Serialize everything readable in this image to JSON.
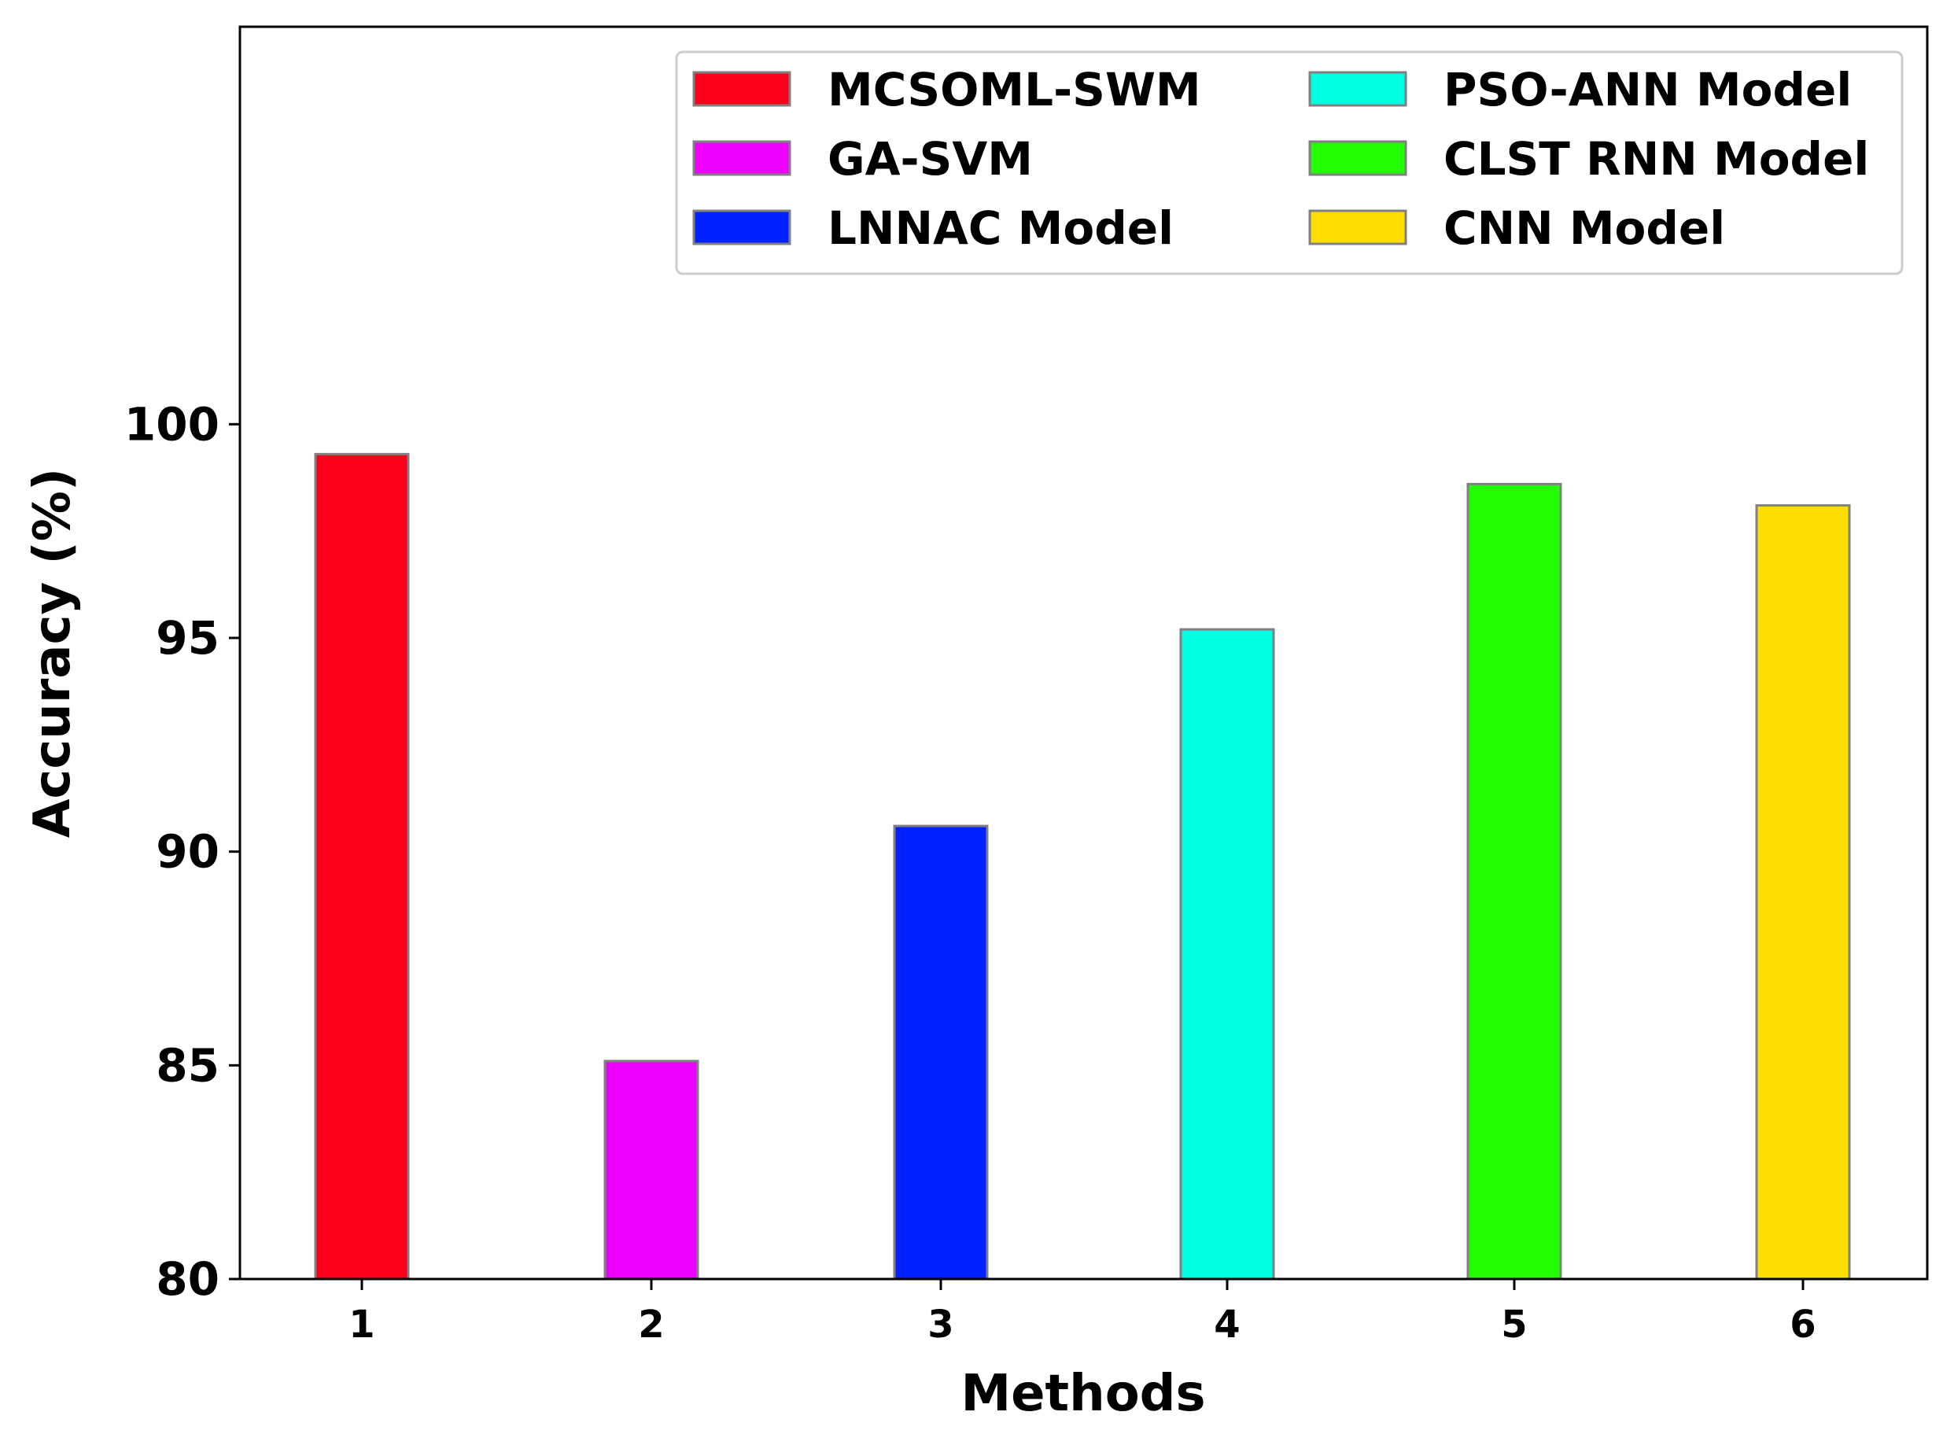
{
  "chart_data": {
    "type": "bar",
    "title": "",
    "xlabel": "Methods",
    "ylabel": "Accuracy (%)",
    "ylim": [
      80,
      109.3
    ],
    "yticks": [
      80,
      85,
      90,
      95,
      100
    ],
    "grid": false,
    "legend_position": "top-right",
    "categories": [
      "1",
      "2",
      "3",
      "4",
      "5",
      "6"
    ],
    "series": [
      {
        "name": "MCSOML-SWM",
        "category": "1",
        "value": 99.3,
        "color": "#ff001c"
      },
      {
        "name": "GA-SVM",
        "category": "2",
        "value": 85.1,
        "color": "#ee00ff"
      },
      {
        "name": "LNNAC Model",
        "category": "3",
        "value": 90.6,
        "color": "#0022ff"
      },
      {
        "name": "PSO-ANN Model",
        "category": "4",
        "value": 95.2,
        "color": "#00ffe0"
      },
      {
        "name": "CLST RNN Model",
        "category": "5",
        "value": 98.6,
        "color": "#22ff00"
      },
      {
        "name": "CNN Model",
        "category": "6",
        "value": 98.1,
        "color": "#ffdd00"
      }
    ]
  }
}
